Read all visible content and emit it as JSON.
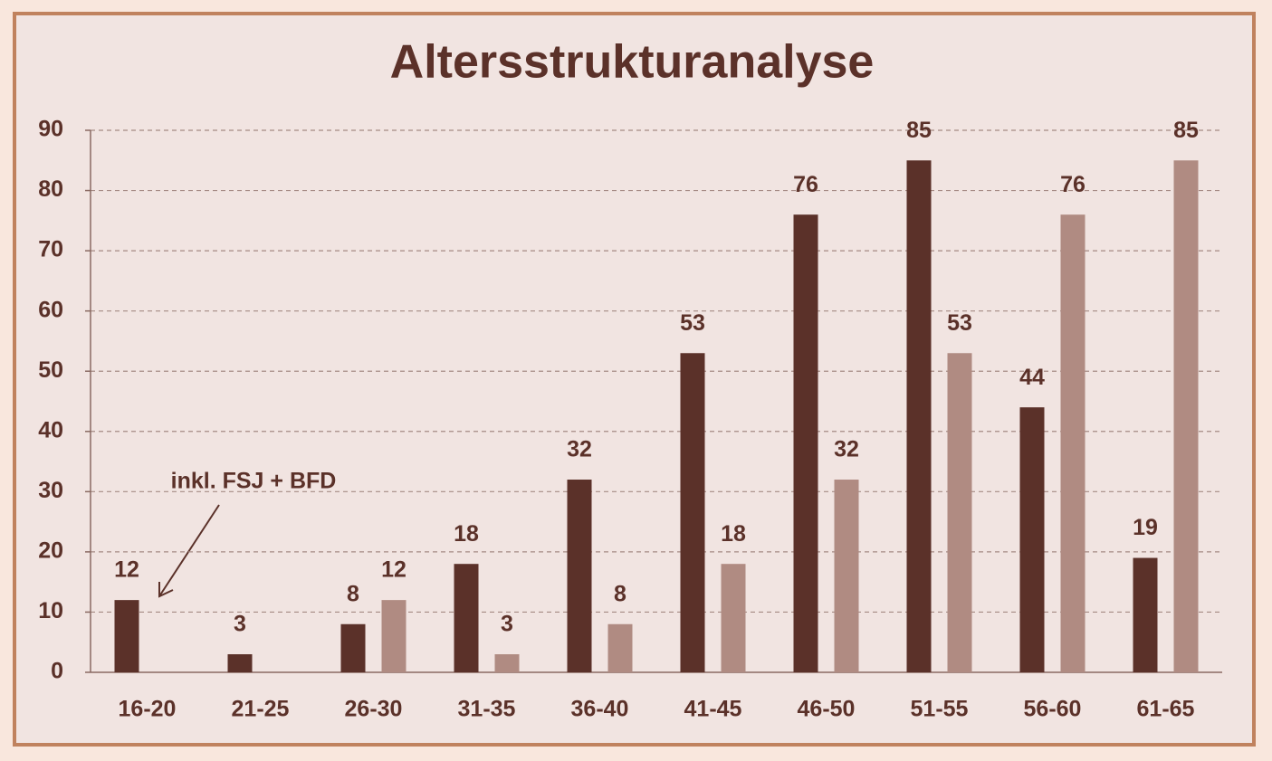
{
  "chart_data": {
    "type": "bar",
    "title": "Altersstrukturanalyse",
    "categories": [
      "16-20",
      "21-25",
      "26-30",
      "31-35",
      "36-40",
      "41-45",
      "46-50",
      "51-55",
      "56-60",
      "61-65"
    ],
    "series": [
      {
        "color": "#5b3129",
        "values": [
          12,
          3,
          8,
          18,
          32,
          53,
          76,
          85,
          44,
          19
        ]
      },
      {
        "color": "#b08b82",
        "values": [
          null,
          null,
          12,
          3,
          8,
          18,
          32,
          53,
          76,
          85
        ]
      }
    ],
    "ylim": [
      0,
      90
    ],
    "yticks": [
      0,
      10,
      20,
      30,
      40,
      50,
      60,
      70,
      80,
      90
    ],
    "grid": true,
    "annotation": "inkl. FSJ + BFD"
  }
}
